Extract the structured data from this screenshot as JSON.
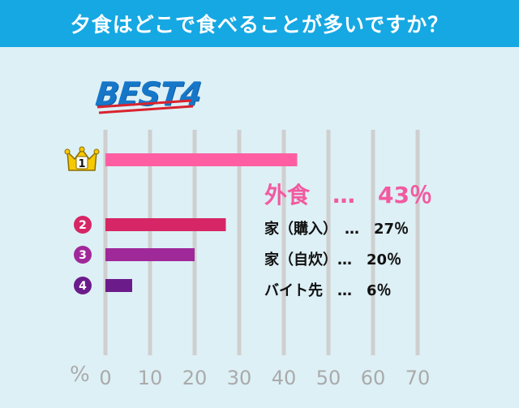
{
  "header": {
    "title": "夕食はどこで食べることが多いですか？"
  },
  "badge": {
    "text": "BEST4"
  },
  "axis": {
    "unit": "%"
  },
  "colors": {
    "header_bg": "#15a8e3",
    "bg": "#ddf0f6",
    "grid": "#cfcfcf",
    "top_label": "#f25aa0",
    "best_text": "#1677c9",
    "underline": "#d9232e",
    "crown": "#f7c900"
  },
  "ranks": [
    {
      "rank": "1",
      "label": "外食　…　43％",
      "color": "#ff5fa2"
    },
    {
      "rank": "2",
      "label": "家（購入）　…　27％",
      "color": "#d62665"
    },
    {
      "rank": "3",
      "label": "家（自炊）…　20％",
      "color": "#a0299a"
    },
    {
      "rank": "4",
      "label": "バイト先　…　6％",
      "color": "#6c1c8a"
    }
  ],
  "chart_data": {
    "type": "bar",
    "orientation": "horizontal",
    "title": "夕食はどこで食べることが多いですか？",
    "categories": [
      "外食",
      "家（購入）",
      "家（自炊）",
      "バイト先"
    ],
    "values": [
      43,
      27,
      20,
      6
    ],
    "xlabel": "%",
    "xlim": [
      0,
      70
    ],
    "xticks": [
      0,
      10,
      20,
      30,
      40,
      50,
      60,
      70
    ],
    "grid": true
  }
}
